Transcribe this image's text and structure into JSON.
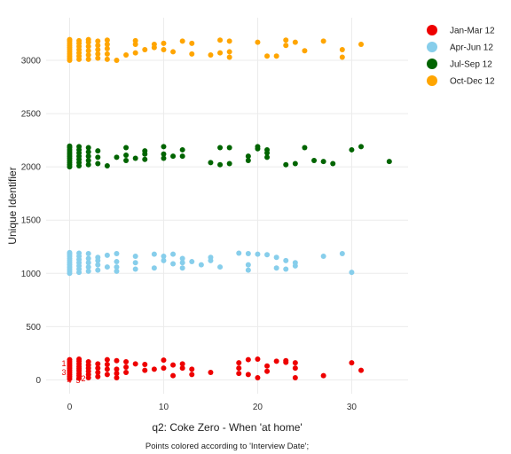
{
  "chart_data": {
    "type": "scatter",
    "xlabel": "q2: Coke Zero - When 'at home'",
    "ylabel": "Unique Identifier",
    "caption": "Points colored according to 'Interview Date';",
    "xlim": [
      -2.5,
      36
    ],
    "ylim": [
      -130,
      3400
    ],
    "x_ticks": [
      "0",
      "10",
      "20",
      "30"
    ],
    "y_ticks": [
      "0",
      "500",
      "1000",
      "1500",
      "2000",
      "2500",
      "3000"
    ],
    "grid": true,
    "legend_position": "right",
    "annotations": [
      "1",
      "3",
      "4",
      "5",
      "2"
    ],
    "series": [
      {
        "name": "Jan-Mar 12",
        "color": "#ee0000",
        "points": [
          [
            0,
            10
          ],
          [
            0,
            30
          ],
          [
            0,
            50
          ],
          [
            0,
            70
          ],
          [
            0,
            90
          ],
          [
            0,
            110
          ],
          [
            0,
            130
          ],
          [
            0,
            150
          ],
          [
            0,
            170
          ],
          [
            0,
            190
          ],
          [
            1,
            15
          ],
          [
            1,
            40
          ],
          [
            1,
            60
          ],
          [
            1,
            85
          ],
          [
            1,
            105
          ],
          [
            1,
            125
          ],
          [
            1,
            150
          ],
          [
            1,
            175
          ],
          [
            1,
            195
          ],
          [
            2,
            20
          ],
          [
            2,
            50
          ],
          [
            2,
            80
          ],
          [
            2,
            110
          ],
          [
            2,
            140
          ],
          [
            2,
            170
          ],
          [
            3,
            30
          ],
          [
            3,
            70
          ],
          [
            3,
            110
          ],
          [
            3,
            150
          ],
          [
            4,
            50
          ],
          [
            4,
            100
          ],
          [
            4,
            145
          ],
          [
            4,
            190
          ],
          [
            5,
            20
          ],
          [
            5,
            60
          ],
          [
            5,
            100
          ],
          [
            5,
            180
          ],
          [
            6,
            70
          ],
          [
            6,
            120
          ],
          [
            6,
            170
          ],
          [
            7,
            150
          ],
          [
            8,
            90
          ],
          [
            8,
            145
          ],
          [
            9,
            100
          ],
          [
            10,
            110
          ],
          [
            10,
            185
          ],
          [
            11,
            40
          ],
          [
            11,
            140
          ],
          [
            12,
            110
          ],
          [
            12,
            150
          ],
          [
            13,
            50
          ],
          [
            13,
            100
          ],
          [
            15,
            70
          ],
          [
            18,
            60
          ],
          [
            18,
            110
          ],
          [
            18,
            160
          ],
          [
            19,
            50
          ],
          [
            19,
            190
          ],
          [
            20,
            20
          ],
          [
            20,
            195
          ],
          [
            21,
            80
          ],
          [
            21,
            130
          ],
          [
            22,
            175
          ],
          [
            23,
            165
          ],
          [
            23,
            180
          ],
          [
            24,
            20
          ],
          [
            24,
            110
          ],
          [
            24,
            160
          ],
          [
            27,
            40
          ],
          [
            30,
            160
          ],
          [
            31,
            90
          ]
        ]
      },
      {
        "name": "Apr-Jun 12",
        "color": "#87ceeb",
        "points": [
          [
            0,
            1000
          ],
          [
            0,
            1020
          ],
          [
            0,
            1040
          ],
          [
            0,
            1060
          ],
          [
            0,
            1080
          ],
          [
            0,
            1100
          ],
          [
            0,
            1120
          ],
          [
            0,
            1140
          ],
          [
            0,
            1160
          ],
          [
            0,
            1180
          ],
          [
            0,
            1195
          ],
          [
            1,
            1010
          ],
          [
            1,
            1040
          ],
          [
            1,
            1070
          ],
          [
            1,
            1100
          ],
          [
            1,
            1130
          ],
          [
            1,
            1160
          ],
          [
            1,
            1190
          ],
          [
            2,
            1020
          ],
          [
            2,
            1060
          ],
          [
            2,
            1100
          ],
          [
            2,
            1140
          ],
          [
            2,
            1185
          ],
          [
            3,
            1030
          ],
          [
            3,
            1080
          ],
          [
            3,
            1120
          ],
          [
            3,
            1150
          ],
          [
            4,
            1060
          ],
          [
            4,
            1170
          ],
          [
            5,
            1020
          ],
          [
            5,
            1060
          ],
          [
            5,
            1110
          ],
          [
            5,
            1185
          ],
          [
            7,
            1040
          ],
          [
            7,
            1100
          ],
          [
            7,
            1160
          ],
          [
            9,
            1050
          ],
          [
            9,
            1180
          ],
          [
            10,
            1120
          ],
          [
            10,
            1160
          ],
          [
            11,
            1090
          ],
          [
            11,
            1180
          ],
          [
            12,
            1050
          ],
          [
            12,
            1100
          ],
          [
            12,
            1140
          ],
          [
            13,
            1110
          ],
          [
            14,
            1080
          ],
          [
            15,
            1120
          ],
          [
            15,
            1150
          ],
          [
            16,
            1060
          ],
          [
            18,
            1190
          ],
          [
            19,
            1030
          ],
          [
            19,
            1080
          ],
          [
            19,
            1185
          ],
          [
            20,
            1180
          ],
          [
            21,
            1175
          ],
          [
            22,
            1050
          ],
          [
            22,
            1150
          ],
          [
            23,
            1040
          ],
          [
            23,
            1120
          ],
          [
            24,
            1070
          ],
          [
            24,
            1100
          ],
          [
            27,
            1160
          ],
          [
            29,
            1185
          ],
          [
            30,
            1010
          ]
        ]
      },
      {
        "name": "Jul-Sep 12",
        "color": "#006400",
        "points": [
          [
            0,
            2000
          ],
          [
            0,
            2020
          ],
          [
            0,
            2040
          ],
          [
            0,
            2060
          ],
          [
            0,
            2080
          ],
          [
            0,
            2100
          ],
          [
            0,
            2120
          ],
          [
            0,
            2140
          ],
          [
            0,
            2160
          ],
          [
            0,
            2180
          ],
          [
            0,
            2195
          ],
          [
            1,
            2010
          ],
          [
            1,
            2040
          ],
          [
            1,
            2070
          ],
          [
            1,
            2100
          ],
          [
            1,
            2130
          ],
          [
            1,
            2160
          ],
          [
            1,
            2190
          ],
          [
            2,
            2020
          ],
          [
            2,
            2060
          ],
          [
            2,
            2100
          ],
          [
            2,
            2140
          ],
          [
            2,
            2180
          ],
          [
            3,
            2030
          ],
          [
            3,
            2090
          ],
          [
            3,
            2150
          ],
          [
            4,
            2010
          ],
          [
            5,
            2090
          ],
          [
            6,
            2060
          ],
          [
            6,
            2110
          ],
          [
            6,
            2180
          ],
          [
            7,
            2080
          ],
          [
            8,
            2070
          ],
          [
            8,
            2120
          ],
          [
            8,
            2150
          ],
          [
            10,
            2080
          ],
          [
            10,
            2120
          ],
          [
            10,
            2190
          ],
          [
            11,
            2100
          ],
          [
            12,
            2100
          ],
          [
            12,
            2160
          ],
          [
            15,
            2040
          ],
          [
            16,
            2020
          ],
          [
            16,
            2180
          ],
          [
            17,
            2030
          ],
          [
            17,
            2180
          ],
          [
            19,
            2060
          ],
          [
            19,
            2100
          ],
          [
            20,
            2170
          ],
          [
            20,
            2190
          ],
          [
            21,
            2090
          ],
          [
            21,
            2130
          ],
          [
            21,
            2160
          ],
          [
            23,
            2020
          ],
          [
            24,
            2030
          ],
          [
            25,
            2180
          ],
          [
            26,
            2060
          ],
          [
            27,
            2050
          ],
          [
            28,
            2030
          ],
          [
            30,
            2160
          ],
          [
            31,
            2190
          ],
          [
            34,
            2050
          ]
        ]
      },
      {
        "name": "Oct-Dec 12",
        "color": "#ffa500",
        "points": [
          [
            0,
            3000
          ],
          [
            0,
            3020
          ],
          [
            0,
            3040
          ],
          [
            0,
            3060
          ],
          [
            0,
            3080
          ],
          [
            0,
            3100
          ],
          [
            0,
            3120
          ],
          [
            0,
            3140
          ],
          [
            0,
            3160
          ],
          [
            0,
            3180
          ],
          [
            0,
            3195
          ],
          [
            1,
            3010
          ],
          [
            1,
            3040
          ],
          [
            1,
            3070
          ],
          [
            1,
            3100
          ],
          [
            1,
            3130
          ],
          [
            1,
            3160
          ],
          [
            1,
            3185
          ],
          [
            2,
            3010
          ],
          [
            2,
            3050
          ],
          [
            2,
            3090
          ],
          [
            2,
            3130
          ],
          [
            2,
            3170
          ],
          [
            2,
            3195
          ],
          [
            3,
            3020
          ],
          [
            3,
            3060
          ],
          [
            3,
            3100
          ],
          [
            3,
            3140
          ],
          [
            3,
            3180
          ],
          [
            4,
            3010
          ],
          [
            4,
            3060
          ],
          [
            4,
            3110
          ],
          [
            4,
            3150
          ],
          [
            4,
            3190
          ],
          [
            5,
            3000
          ],
          [
            6,
            3050
          ],
          [
            7,
            3070
          ],
          [
            7,
            3150
          ],
          [
            7,
            3185
          ],
          [
            8,
            3100
          ],
          [
            9,
            3120
          ],
          [
            9,
            3150
          ],
          [
            10,
            3100
          ],
          [
            10,
            3160
          ],
          [
            11,
            3080
          ],
          [
            12,
            3180
          ],
          [
            13,
            3060
          ],
          [
            13,
            3160
          ],
          [
            15,
            3050
          ],
          [
            16,
            3070
          ],
          [
            16,
            3190
          ],
          [
            17,
            3030
          ],
          [
            17,
            3080
          ],
          [
            17,
            3180
          ],
          [
            20,
            3170
          ],
          [
            21,
            3040
          ],
          [
            22,
            3040
          ],
          [
            23,
            3140
          ],
          [
            23,
            3190
          ],
          [
            24,
            3170
          ],
          [
            25,
            3090
          ],
          [
            27,
            3180
          ],
          [
            29,
            3030
          ],
          [
            29,
            3100
          ],
          [
            31,
            3150
          ]
        ]
      }
    ]
  }
}
